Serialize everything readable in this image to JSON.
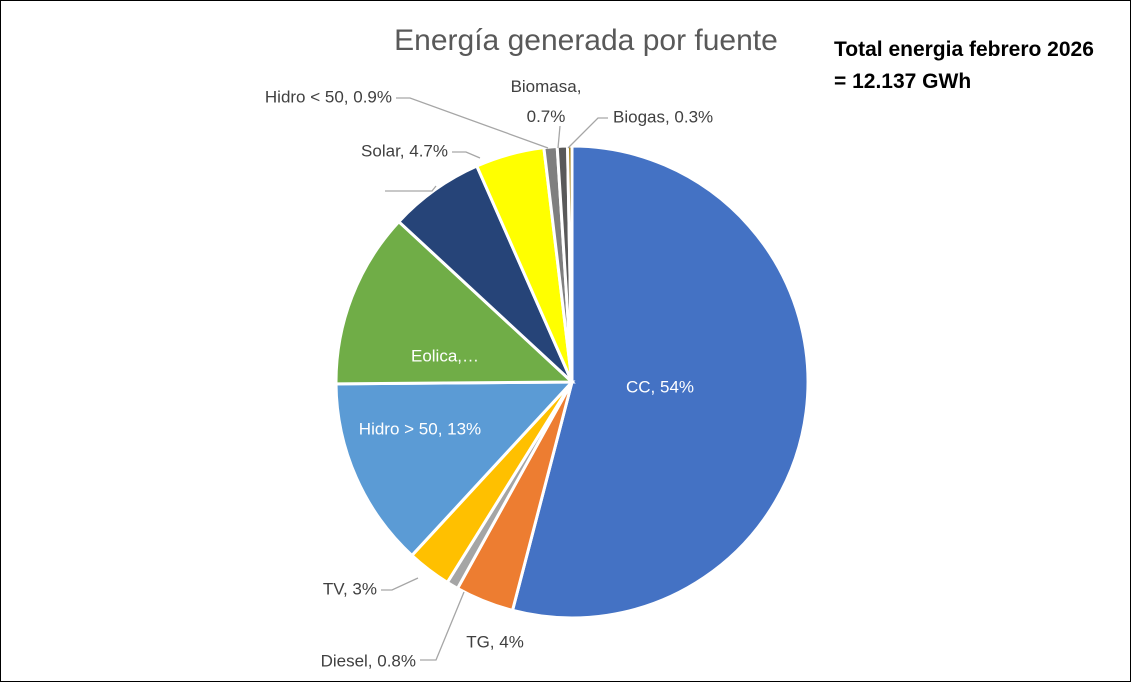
{
  "chart_data": {
    "type": "pie",
    "title": "Energía generada por fuente",
    "annotation": "Total energia febrero 2026 = 12.137 GWh",
    "values": [
      54,
      4,
      0.8,
      3,
      13,
      12,
      6.5,
      4.7,
      0.9,
      0.7,
      0.3
    ],
    "value_labels": [
      "CC, 54%",
      "TG, 4%",
      "Diesel, 0.8%",
      "TV, 3%",
      "Hidro > 50, 13%",
      "Eolica,…",
      null,
      "Solar, 4.7%",
      "Hidro < 50, 0.9%",
      "Biomasa, 0.7%",
      "Biogas, 0.3%"
    ],
    "colors": [
      "#4472c4",
      "#ed7d31",
      "#a5a5a5",
      "#ffc000",
      "#5b9bd5",
      "#70ad47",
      "#264478",
      "#ffff00",
      "#7f7f7f",
      "#595959",
      "#997300"
    ]
  }
}
